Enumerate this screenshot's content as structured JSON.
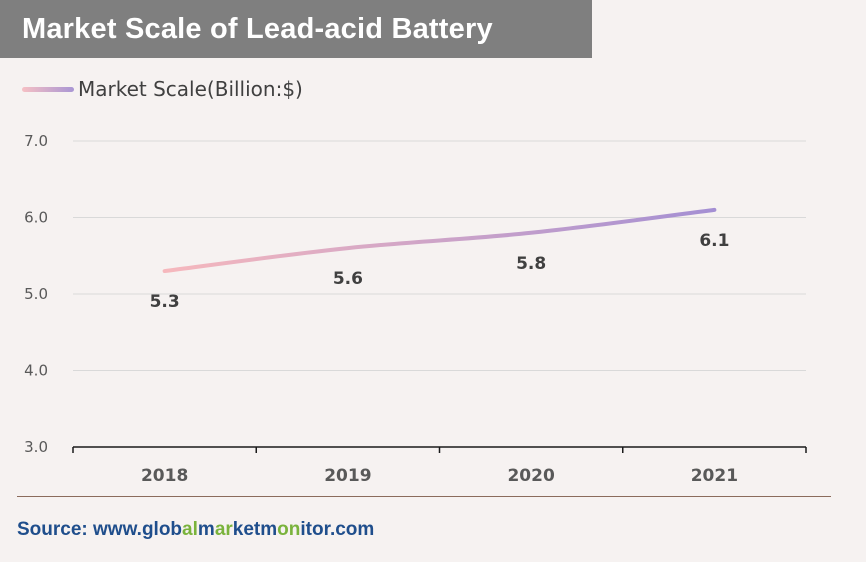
{
  "title": "Market Scale of Lead-acid Battery",
  "source": {
    "prefix": "Source: www.",
    "parts": [
      {
        "text": "glob",
        "green": false
      },
      {
        "text": "al",
        "green": true
      },
      {
        "text": "m",
        "green": false
      },
      {
        "text": "ar",
        "green": true
      },
      {
        "text": "ket",
        "green": false
      },
      {
        "text": "m",
        "green": false
      },
      {
        "text": "on",
        "green": true
      },
      {
        "text": "itor",
        "green": false
      }
    ],
    "suffix": ".com"
  },
  "colors": {
    "background": "#f6f2f1",
    "title_bg": "#7f7f7f",
    "line_start": "#f6b8bd",
    "line_end": "#a48fd3",
    "source_blue": "#1f4e8c",
    "source_green": "#7ab33c"
  },
  "chart_data": {
    "type": "line",
    "categories": [
      "2018",
      "2019",
      "2020",
      "2021"
    ],
    "series": [
      {
        "name": "Market Scale(Billion:$)",
        "values": [
          5.3,
          5.6,
          5.8,
          6.1
        ]
      }
    ],
    "data_labels": [
      "5.3",
      "5.6",
      "5.8",
      "6.1"
    ],
    "y_ticks": [
      "3.0",
      "4.0",
      "5.0",
      "6.0",
      "7.0"
    ],
    "ylim": [
      3.0,
      7.0
    ],
    "grid": true,
    "legend": "top-left",
    "smooth": true
  }
}
